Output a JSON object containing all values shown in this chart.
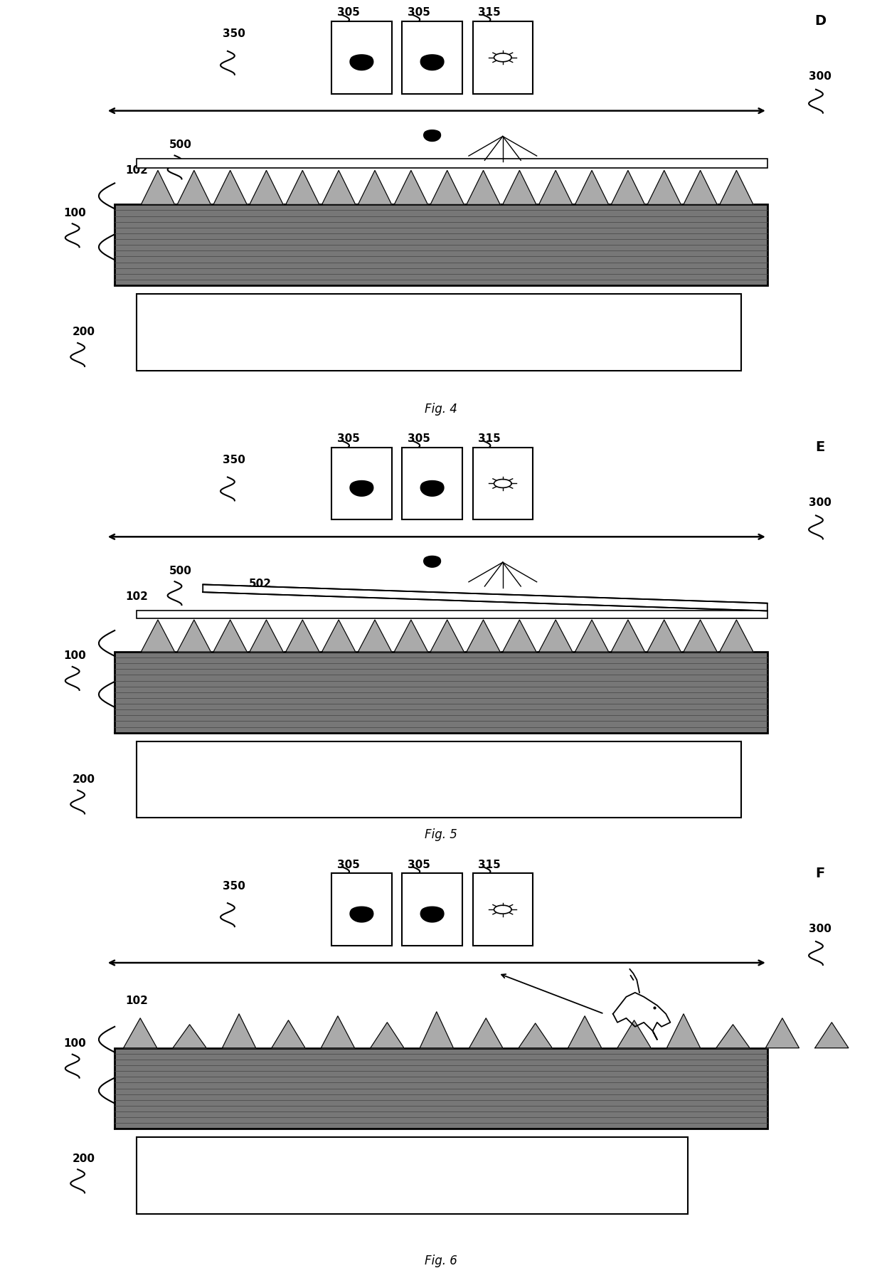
{
  "bg_color": "#ffffff",
  "line_color": "#000000",
  "belt_color": "#888888",
  "belt_line_color": "#555555",
  "tri_color": "#999999",
  "platen_color": "#ffffff",
  "film_color": "#ffffff",
  "label_fontsize": 11,
  "panel_letter_fontsize": 14,
  "fig_label_fontsize": 12,
  "ref_fontsize": 11,
  "fig4_label": "Fig. 4",
  "fig5_label": "Fig. 5",
  "fig6_label": "Fig. 6"
}
